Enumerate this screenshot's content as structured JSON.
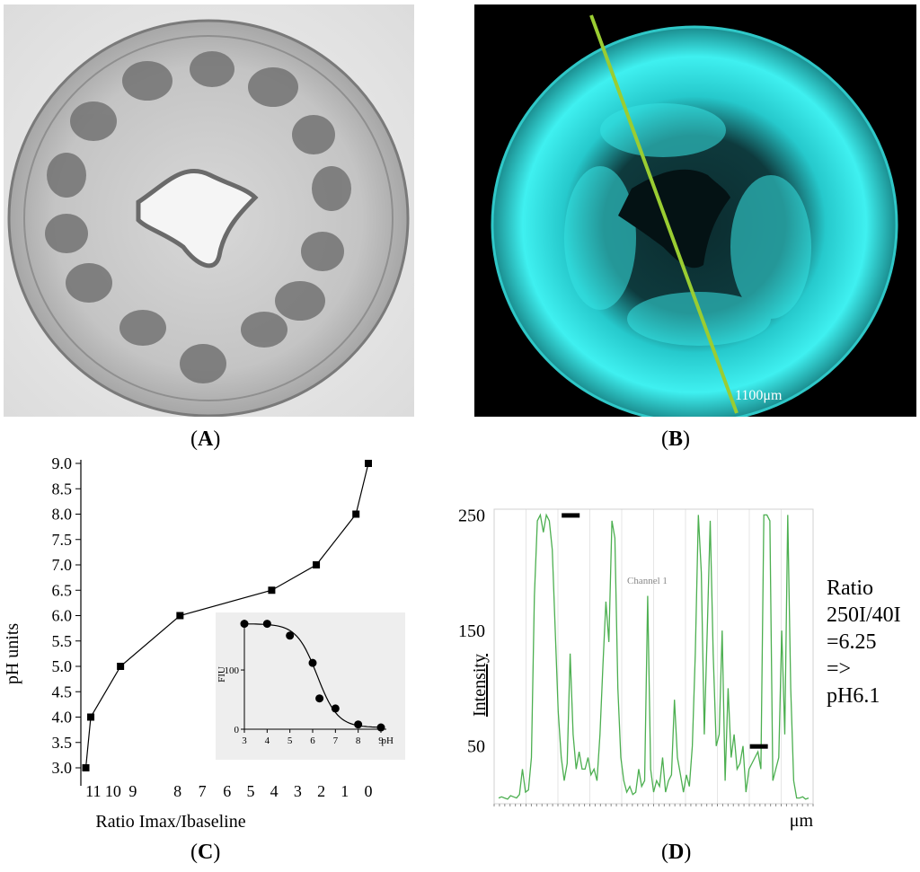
{
  "panels": {
    "A": {
      "label_open": "(",
      "label_letter": "A",
      "label_close": ")"
    },
    "B": {
      "label_open": "(",
      "label_letter": "B",
      "label_close": ")",
      "scale_text": "1100μm"
    },
    "C": {
      "label_open": "(",
      "label_letter": "C",
      "label_close": ")"
    },
    "D": {
      "label_open": "(",
      "label_letter": "D",
      "label_close": ")"
    }
  },
  "colors": {
    "fluor_cyan": "#2fe6e6",
    "profile_green": "#4caf50",
    "scan_line": "#9acd32",
    "inset_bg": "#eeeeee"
  },
  "chart_data": [
    {
      "id": "C-main",
      "type": "line",
      "ylabel": "pH units",
      "xlabel": "Ratio Imax/Ibaseline",
      "x_axis_reversed": true,
      "x_tick_labels": [
        "11",
        "10",
        "9",
        "8",
        "7",
        "6",
        "5",
        "4",
        "3",
        "2",
        "1",
        "0"
      ],
      "y_tick_labels": [
        "3.0",
        "3.5",
        "4.0",
        "4.5",
        "5.0",
        "5.5",
        "6.0",
        "6.5",
        "7.0",
        "7.5",
        "8.0",
        "8.5",
        "9.0"
      ],
      "ylim": [
        3.0,
        9.0
      ],
      "series": [
        {
          "x": [
            11.4,
            11.2,
            10.0,
            7.6,
            3.9,
            2.1,
            0.5,
            0.0
          ],
          "y": [
            3.0,
            4.0,
            5.0,
            6.0,
            6.5,
            7.0,
            8.0,
            9.0
          ]
        }
      ]
    },
    {
      "id": "C-inset",
      "type": "scatter",
      "xlabel": "pH",
      "ylabel": "FIU",
      "x_tick_labels": [
        "3",
        "4",
        "5",
        "6",
        "7",
        "8",
        "9"
      ],
      "y_tick_labels": [
        "0",
        "100"
      ],
      "xlim": [
        3,
        9
      ],
      "ylim": [
        0,
        185
      ],
      "points": {
        "x": [
          3,
          4,
          5,
          6,
          6.3,
          7,
          8,
          9
        ],
        "y": [
          178,
          178,
          158,
          112,
          52,
          35,
          8,
          3
        ]
      },
      "fit": "sigmoid"
    },
    {
      "id": "D-profile",
      "type": "line",
      "ylabel": "Intensity",
      "xlabel": "μm",
      "legend": "Channel 1",
      "y_tick_labels": [
        "250",
        "150",
        "50"
      ],
      "ylim": [
        0,
        255
      ],
      "series": [
        {
          "name": "Channel 1",
          "y": [
            5,
            6,
            5,
            4,
            7,
            6,
            5,
            8,
            30,
            10,
            12,
            40,
            180,
            245,
            250,
            235,
            250,
            245,
            220,
            150,
            80,
            40,
            20,
            35,
            130,
            60,
            30,
            45,
            30,
            30,
            40,
            25,
            30,
            20,
            60,
            120,
            175,
            140,
            245,
            230,
            100,
            40,
            20,
            10,
            15,
            8,
            10,
            30,
            15,
            20,
            180,
            30,
            10,
            20,
            15,
            40,
            10,
            20,
            25,
            90,
            40,
            25,
            10,
            25,
            15,
            50,
            130,
            250,
            200,
            60,
            150,
            245,
            130,
            50,
            60,
            150,
            20,
            100,
            40,
            60,
            30,
            35,
            50,
            10,
            30,
            35,
            40,
            45,
            30,
            250,
            250,
            245,
            20,
            30,
            40,
            150,
            60,
            250,
            100,
            20,
            5,
            5,
            6,
            4,
            5
          ]
        }
      ],
      "markers": [
        {
          "x_frac": 0.24,
          "y": 250
        },
        {
          "x_frac": 0.83,
          "y": 50
        }
      ]
    }
  ],
  "panel_D_text": {
    "line1": "Ratio",
    "line2": "250I/40I",
    "line3": "=6.25",
    "line4": "=>",
    "line5": "pH6.1"
  }
}
